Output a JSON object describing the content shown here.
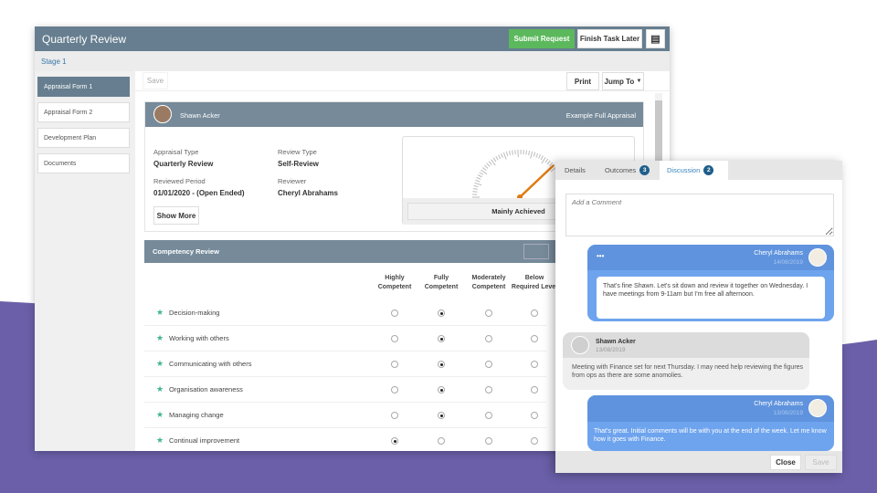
{
  "window": {
    "title": "Quarterly Review",
    "submit_label": "Submit Request",
    "finish_label": "Finish Task Later",
    "stage": "Stage 1"
  },
  "sidebar": {
    "items": [
      {
        "label": "Appraisal Form 1",
        "active": true
      },
      {
        "label": "Appraisal Form 2"
      },
      {
        "label": "Development Plan"
      },
      {
        "label": "Documents"
      }
    ]
  },
  "toolbar": {
    "save_label": "Save",
    "print_label": "Print",
    "jump_label": "Jump To"
  },
  "profile": {
    "name": "Shawn Acker",
    "form_name": "Example Full Appraisal",
    "appraisal_type_label": "Appraisal Type",
    "appraisal_type": "Quarterly Review",
    "review_type_label": "Review Type",
    "review_type": "Self-Review",
    "period_label": "Reviewed Period",
    "period": "01/01/2020 - (Open Ended)",
    "reviewer_label": "Reviewer",
    "reviewer": "Cheryl Abrahams",
    "show_more": "Show More",
    "gauge_result": "Mainly Achieved",
    "gauge_color": "#e07a10"
  },
  "competency": {
    "title": "Competency Review",
    "columns": [
      "Highly Competent",
      "Fully Competent",
      "Moderately Competent",
      "Below Required Level"
    ],
    "rows": [
      {
        "name": "Decision-making",
        "selected": 1
      },
      {
        "name": "Working with others",
        "selected": 1
      },
      {
        "name": "Communicating with others",
        "selected": 1
      },
      {
        "name": "Organisation awareness",
        "selected": 1
      },
      {
        "name": "Managing change",
        "selected": 1
      },
      {
        "name": "Continual improvement",
        "selected": 0
      }
    ]
  },
  "panel": {
    "tabs": [
      {
        "label": "Details"
      },
      {
        "label": "Outcomes",
        "count": "3"
      },
      {
        "label": "Discussion",
        "count": "2",
        "active": true
      }
    ],
    "comment_placeholder": "Add a Comment",
    "messages": [
      {
        "author": "Cheryl Abrahams",
        "date": "14/08/2019",
        "text": "That's fine Shawn. Let's sit down and review it together on Wednesday. I have meetings from 9-11am but I'm free all afternoon.",
        "more": "•••"
      },
      {
        "author": "Shawn Acker",
        "date": "13/08/2019",
        "text": "Meeting with Finance set for next Thursday. I may need help reviewing the figures from ops as there are some anomolies."
      },
      {
        "author": "Cheryl Abrahams",
        "date": "13/08/2019",
        "text": "That's great. Initial comments will be with you at the end of the week. Let me know how it goes with Finance."
      }
    ],
    "close_label": "Close",
    "save_label": "Save"
  },
  "colors": {
    "header": "#667e8f",
    "submit": "#5cb85c",
    "background_accent": "#6a5fa8",
    "bubble": "#6ea4ee"
  }
}
